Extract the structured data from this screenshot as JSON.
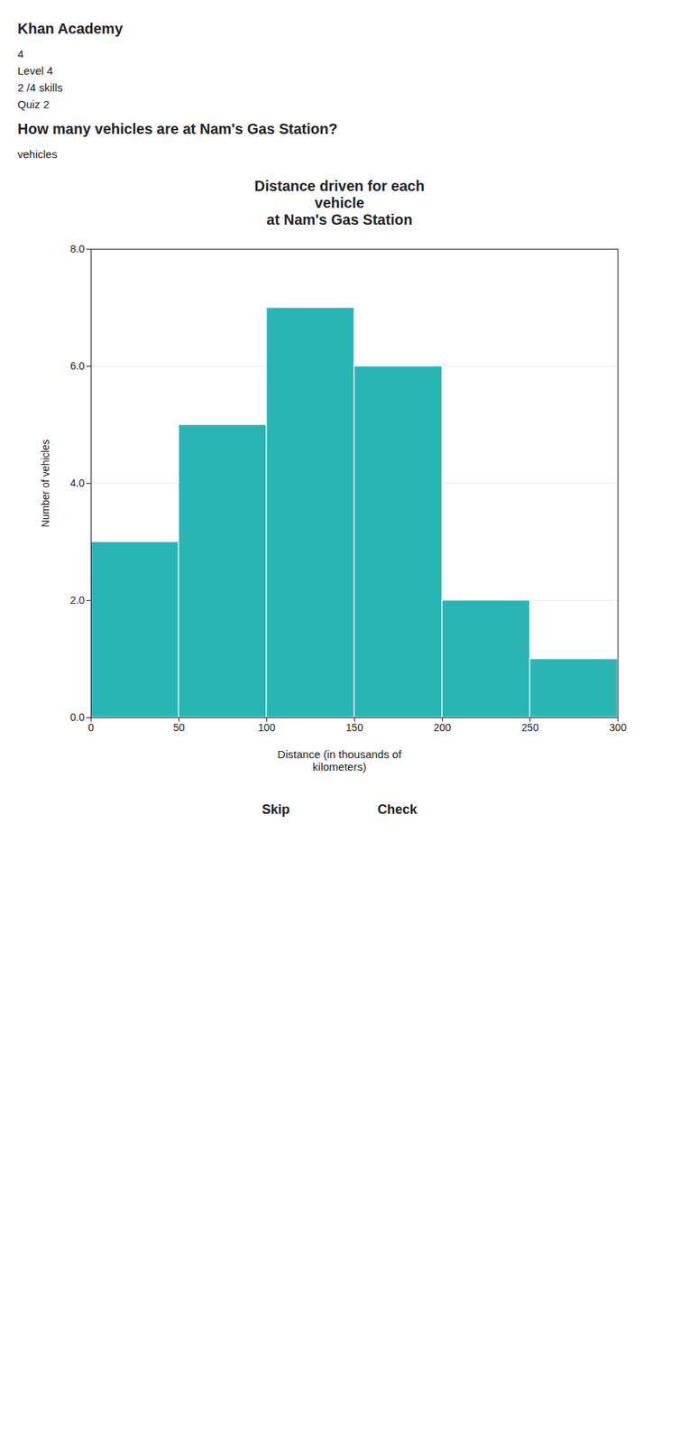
{
  "chart_data": {
    "type": "histogram",
    "title": "Distance driven for each\nvehicle\nat Nam's Gas Station",
    "xlabel": "Distance (in thousands of\nkilometers)",
    "ylabel": "Number of vehicles",
    "bins": [
      0,
      50,
      100,
      150,
      200,
      250,
      300
    ],
    "values": [
      3,
      5,
      7,
      6,
      2,
      1
    ],
    "color": "#2ab5b5",
    "xlim": [
      0,
      300
    ],
    "ylim": [
      0,
      8
    ],
    "xticks": [
      0,
      50,
      100,
      150,
      200,
      250,
      300
    ],
    "yticks": [
      0,
      2,
      4,
      6,
      8
    ],
    "grid": true,
    "annotations": [
      "Khan Academy",
      "4",
      "Level 4",
      "2 /4 skills",
      "Quiz 2",
      "How many vehicles are at Nam's Gas Station?",
      "vehicles",
      "Skip",
      "Check"
    ]
  }
}
